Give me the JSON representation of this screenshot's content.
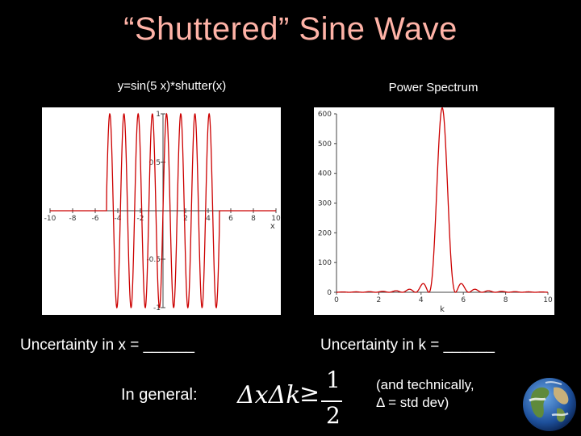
{
  "slide": {
    "title": "“Shuttered” Sine Wave",
    "left_caption": "y=sin(5 x)*shutter(x)",
    "right_caption": "Power Spectrum",
    "uncertainty_x": "Uncertainty in x = ______",
    "uncertainty_k": "Uncertainty in k = ______",
    "in_general": "In general:",
    "formula": {
      "lhs": "ΔxΔk",
      "relation": "≥",
      "numerator": "1",
      "denominator": "2"
    },
    "note_line1": "(and technically,",
    "note_line2": "Δ = std dev)",
    "globe_icon": "earth-globe-icon"
  },
  "chart_data": [
    {
      "type": "line",
      "title": "y=sin(5 x)*shutter(x)",
      "xlabel": "x",
      "ylabel": "",
      "xlim": [
        -10,
        10
      ],
      "ylim": [
        -1,
        1
      ],
      "x_ticks": [
        "-10",
        "-8",
        "-6",
        "-4",
        "-2",
        "2",
        "4",
        "6",
        "8",
        "10"
      ],
      "y_ticks": [
        "1",
        "0.5",
        "-0.5",
        "-1"
      ],
      "function": "sin(5x) for |x| < 5, 0 otherwise",
      "series": [
        {
          "color": "#cc0000"
        }
      ]
    },
    {
      "type": "line",
      "title": "Power Spectrum",
      "xlabel": "k",
      "ylabel": "",
      "xlim": [
        0,
        10
      ],
      "ylim": [
        0,
        600
      ],
      "x_ticks": [
        "0",
        "2",
        "4",
        "6",
        "8",
        "10"
      ],
      "y_ticks": [
        "600",
        "500",
        "400",
        "300",
        "200",
        "100",
        "0"
      ],
      "peak": {
        "k": 5,
        "value": 620
      },
      "series": [
        {
          "color": "#cc0000"
        }
      ]
    }
  ]
}
